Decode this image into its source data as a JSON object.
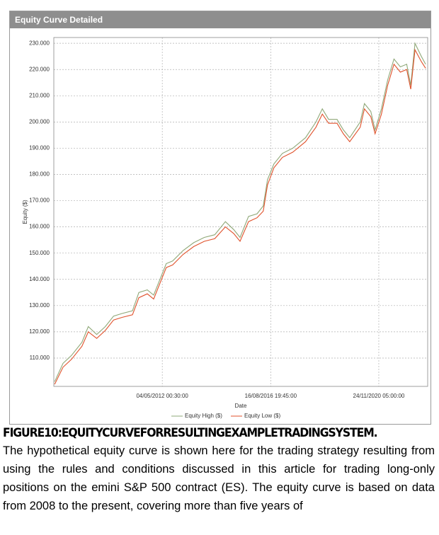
{
  "panel_title": "Equity Curve Detailed",
  "chart_data": {
    "type": "line",
    "xlabel": "Date",
    "ylabel": "Equity ($)",
    "x": [
      "2008-02-01",
      "2008-06-01",
      "2008-10-01",
      "2009-03-01",
      "2009-06-01",
      "2009-10-01",
      "2010-02-01",
      "2010-06-01",
      "2010-10-01",
      "2011-03-01",
      "2011-06-01",
      "2011-10-01",
      "2012-01-01",
      "2012-04-01",
      "2012-07-01",
      "2012-10-01",
      "2013-03-01",
      "2013-08-01",
      "2014-01-01",
      "2014-06-01",
      "2014-11-01",
      "2015-03-01",
      "2015-06-01",
      "2015-10-01",
      "2016-02-01",
      "2016-05-01",
      "2016-07-01",
      "2016-10-01",
      "2017-02-01",
      "2017-07-01",
      "2018-01-01",
      "2018-06-01",
      "2018-09-01",
      "2018-12-01",
      "2019-04-01",
      "2019-07-01",
      "2019-10-01",
      "2020-03-01",
      "2020-05-01",
      "2020-08-01",
      "2020-10-01",
      "2021-01-01",
      "2021-04-01",
      "2021-07-01",
      "2021-10-01",
      "2022-01-01",
      "2022-03-01",
      "2022-05-01",
      "2022-08-01",
      "2022-10-01"
    ],
    "series": [
      {
        "name": "Equity High ($)",
        "color": "#8fa878",
        "values": [
          101000,
          108000,
          111000,
          116000,
          122000,
          119000,
          122000,
          126000,
          127000,
          128000,
          135000,
          136000,
          134000,
          140000,
          146000,
          147000,
          151000,
          154000,
          156000,
          157000,
          162000,
          159000,
          156000,
          164000,
          165000,
          168000,
          178000,
          184000,
          188000,
          190000,
          194000,
          200000,
          205000,
          201000,
          201000,
          197000,
          194000,
          200000,
          207000,
          204000,
          197000,
          205000,
          216000,
          224000,
          221000,
          222000,
          214000,
          230000,
          225000,
          222000
        ]
      },
      {
        "name": "Equity Low ($)",
        "color": "#e0512b",
        "values": [
          100000,
          106500,
          109500,
          114500,
          120000,
          117500,
          120500,
          124500,
          125500,
          126500,
          133000,
          134500,
          132500,
          138500,
          144500,
          145500,
          149500,
          152500,
          154500,
          155500,
          160000,
          157500,
          154500,
          162000,
          163500,
          166000,
          176000,
          182500,
          186500,
          188500,
          192500,
          198000,
          203000,
          199500,
          199500,
          195500,
          192500,
          198000,
          205000,
          202000,
          195500,
          203000,
          214000,
          222000,
          219000,
          220000,
          212500,
          227500,
          223000,
          220500
        ]
      }
    ],
    "xlim": [
      "2008-01-20",
      "2022-10-31"
    ],
    "xticks": [
      {
        "value": "2012-05-04T00:30:00",
        "label": "04/05/2012 00:30:00"
      },
      {
        "value": "2016-08-16T19:45:00",
        "label": "16/08/2016 19:45:00"
      },
      {
        "value": "2020-11-24T05:00:00",
        "label": "24/11/2020 05:00:00"
      }
    ],
    "ylim": [
      99200,
      232200
    ],
    "yticks": [
      {
        "value": 110000,
        "label": "110.000"
      },
      {
        "value": 120000,
        "label": "120.000"
      },
      {
        "value": 130000,
        "label": "130.000"
      },
      {
        "value": 140000,
        "label": "140.000"
      },
      {
        "value": 150000,
        "label": "150.000"
      },
      {
        "value": 160000,
        "label": "160.000"
      },
      {
        "value": 170000,
        "label": "170.000"
      },
      {
        "value": 180000,
        "label": "180.000"
      },
      {
        "value": 190000,
        "label": "190.000"
      },
      {
        "value": 200000,
        "label": "200.000"
      },
      {
        "value": 210000,
        "label": "210.000"
      },
      {
        "value": 220000,
        "label": "220.000"
      },
      {
        "value": 230000,
        "label": "230.000"
      }
    ],
    "grid": true,
    "legend": "bottom"
  },
  "caption": {
    "title": "FIGURE10:EQUITYCURVEFORRESULTINGEXAMPLETRADINGSYSTEM.",
    "text": "The hypothetical equity curve is shown here for the trading strategy resulting from using the rules and conditions discussed in this article for trading long-only positions on the emini S&P 500 contract (ES). The equity curve is based on data from 2008 to the present, covering more than five years of"
  }
}
